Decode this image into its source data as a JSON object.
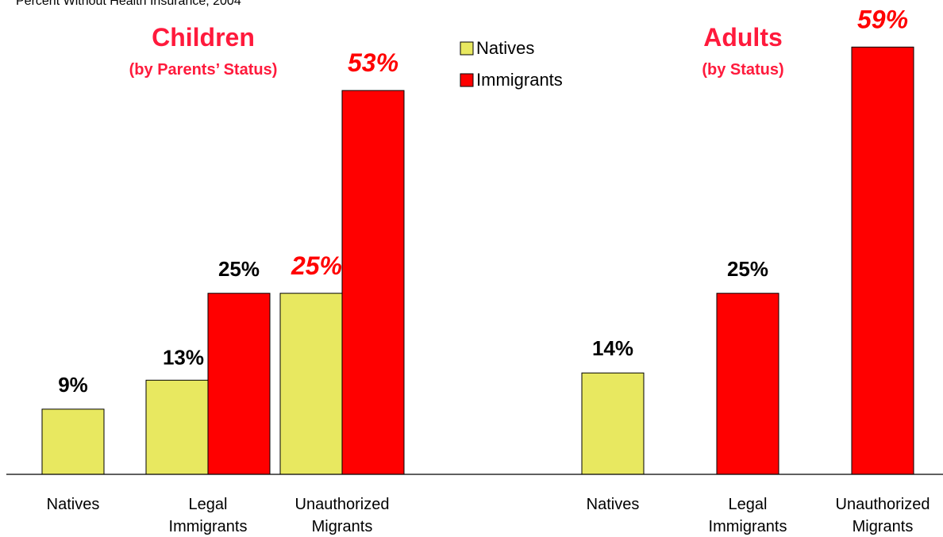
{
  "chart_data": {
    "type": "bar",
    "title": "Percent Without Health Insurance, 2004",
    "groups": [
      {
        "heading": "Children",
        "subheading": "(by Parents’ Status)",
        "categories": [
          {
            "label": [
              "Natives"
            ],
            "bars": [
              {
                "series": "Natives",
                "value": 9,
                "label": "9%"
              }
            ]
          },
          {
            "label": [
              "Legal",
              "Immigrants"
            ],
            "bars": [
              {
                "series": "Natives",
                "value": 13,
                "label": "13%"
              },
              {
                "series": "Immigrants",
                "value": 25,
                "label": "25%"
              }
            ]
          },
          {
            "label": [
              "Unauthorized",
              "Migrants"
            ],
            "bars": [
              {
                "series": "Natives",
                "value": 25,
                "label": "25%",
                "emphasis": true
              },
              {
                "series": "Immigrants",
                "value": 53,
                "label": "53%",
                "emphasis": true
              }
            ]
          }
        ]
      },
      {
        "heading": "Adults",
        "subheading": "(by Status)",
        "categories": [
          {
            "label": [
              "Natives"
            ],
            "bars": [
              {
                "series": "Natives",
                "value": 14,
                "label": "14%"
              }
            ]
          },
          {
            "label": [
              "Legal",
              "Immigrants"
            ],
            "bars": [
              {
                "series": "Immigrants",
                "value": 25,
                "label": "25%"
              }
            ]
          },
          {
            "label": [
              "Unauthorized",
              "Migrants"
            ],
            "bars": [
              {
                "series": "Immigrants",
                "value": 59,
                "label": "59%",
                "emphasis": true
              }
            ]
          }
        ]
      }
    ],
    "series": [
      {
        "name": "Natives",
        "color": "#e8e860"
      },
      {
        "name": "Immigrants",
        "color": "#ff0000"
      }
    ],
    "ylim": [
      0,
      60
    ],
    "grid": false,
    "legend_position": "top-center",
    "heading_color": "#ff1a3c",
    "emphasis_color": "#ff0000"
  }
}
